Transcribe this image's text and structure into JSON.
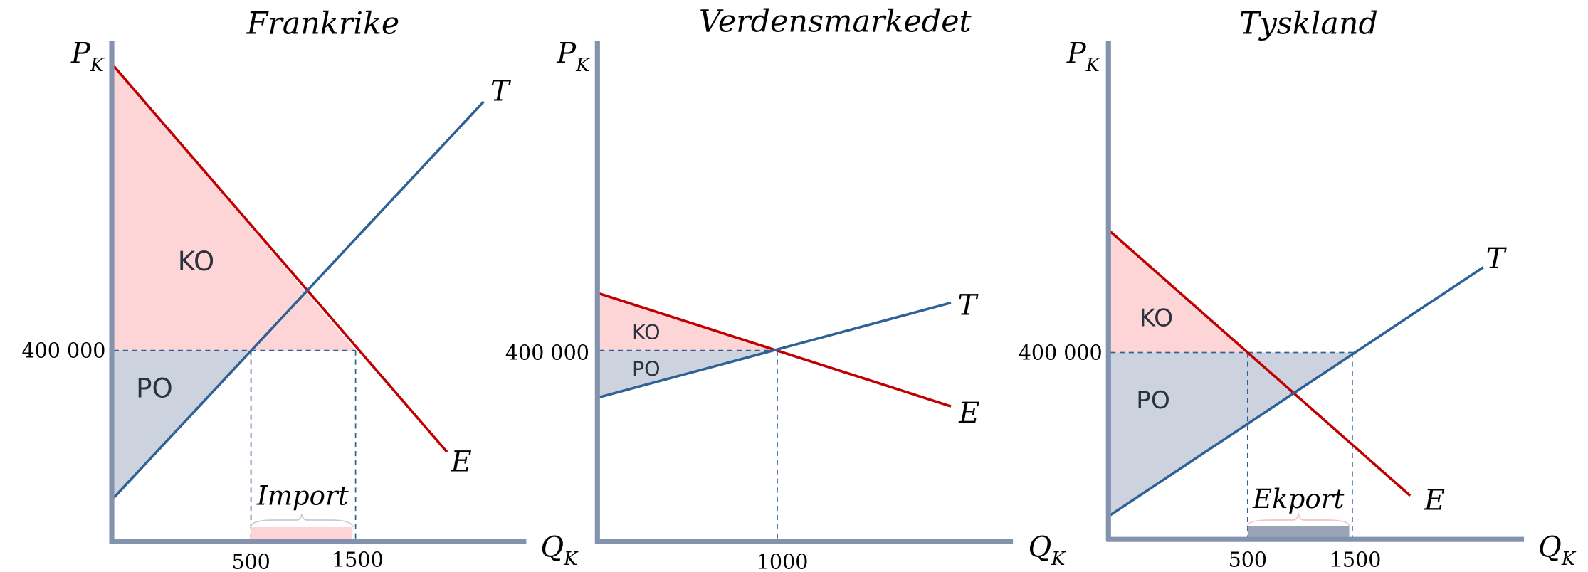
{
  "panels": [
    {
      "title": "Frankrike",
      "y_axis": {
        "symbol": "P",
        "subscript": "K"
      },
      "x_axis": {
        "symbol": "Q",
        "subscript": "K"
      },
      "price_label": "400 000",
      "quantity_labels": [
        "500",
        "1500"
      ],
      "supply_label": "T",
      "demand_label": "E",
      "area_labels": [
        "KO",
        "PO"
      ],
      "annotation": "Import"
    },
    {
      "title": "Verdensmarkedet",
      "y_axis": {
        "symbol": "P",
        "subscript": "K"
      },
      "x_axis": {
        "symbol": "Q",
        "subscript": "K"
      },
      "price_label": "400 000",
      "quantity_labels": [
        "1000"
      ],
      "supply_label": "T",
      "demand_label": "E",
      "area_labels": [
        "KO",
        "PO"
      ]
    },
    {
      "title": "Tyskland",
      "y_axis": {
        "symbol": "P",
        "subscript": "K"
      },
      "x_axis": {
        "symbol": "Q",
        "subscript": "K"
      },
      "price_label": "400 000",
      "quantity_labels": [
        "500",
        "1500"
      ],
      "supply_label": "T",
      "demand_label": "E",
      "area_labels": [
        "KO",
        "PO"
      ],
      "annotation": "Ekport"
    }
  ]
}
